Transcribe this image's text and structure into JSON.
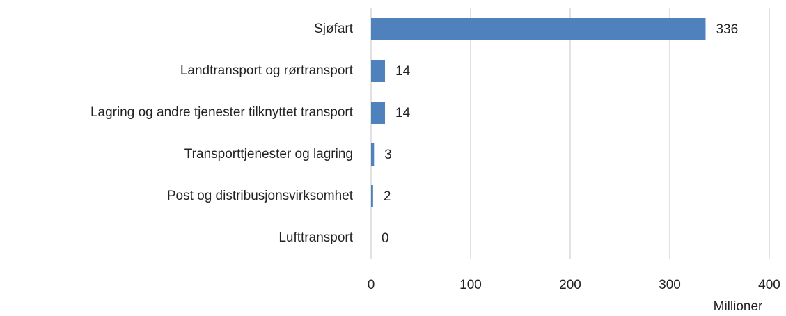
{
  "chart_data": {
    "type": "bar",
    "orientation": "horizontal",
    "categories": [
      "Sjøfart",
      "Landtransport og rørtransport",
      "Lagring og andre tjenester tilknyttet transport",
      "Transporttjenester og lagring",
      "Post og distribusjonsvirksomhet",
      "Lufttransport"
    ],
    "values": [
      336,
      14,
      14,
      3,
      2,
      0
    ],
    "color": "#4f81bd",
    "xlabel": "Millioner",
    "xlim": [
      0,
      400
    ],
    "xticks": [
      0,
      100,
      200,
      300,
      400
    ],
    "grid": true,
    "data_labels": true
  }
}
